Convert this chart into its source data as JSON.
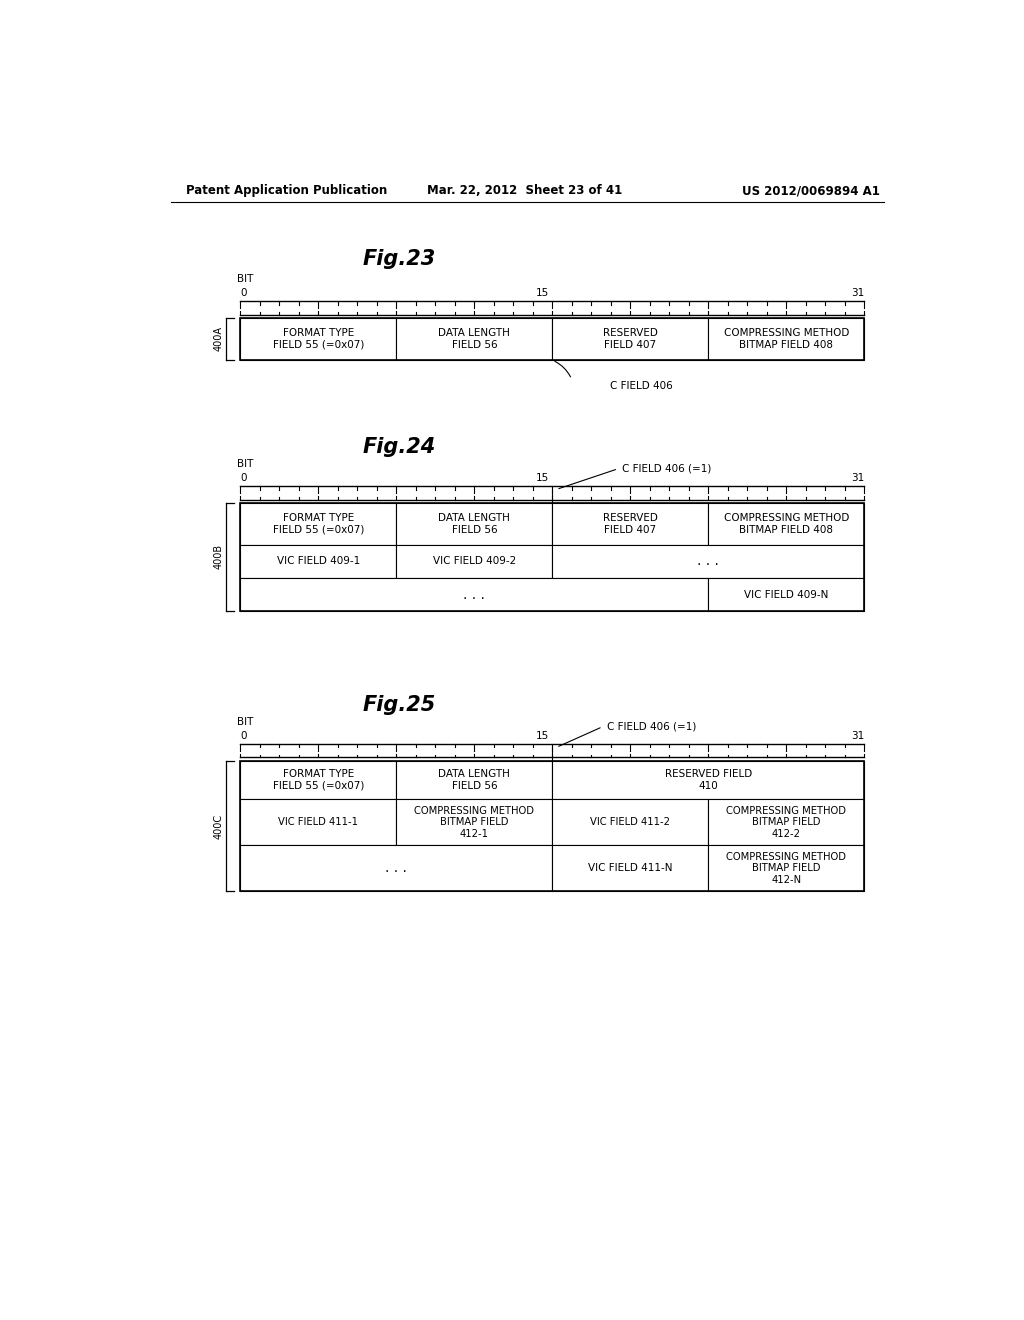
{
  "bg_color": "#ffffff",
  "text_color": "#000000",
  "header_text": {
    "left": "Patent Application Publication",
    "center": "Mar. 22, 2012  Sheet 23 of 41",
    "right": "US 2012/0069894 A1"
  },
  "fig23": {
    "title": "Fig.23",
    "bit_label": "BIT",
    "bit_0": "0",
    "bit_15": "15",
    "bit_31": "31",
    "label_400A": "400A",
    "row1": [
      "FORMAT TYPE\nFIELD 55 (=0x07)",
      "DATA LENGTH\nFIELD 56",
      "RESERVED\nFIELD 407",
      "COMPRESSING METHOD\nBITMAP FIELD 408"
    ],
    "annotation": "C FIELD 406"
  },
  "fig24": {
    "title": "Fig.24",
    "bit_label": "BIT",
    "bit_0": "0",
    "bit_15": "15",
    "bit_31": "31",
    "c_field_label": "C FIELD 406 (=1)",
    "label_400B": "400B",
    "row1": [
      "FORMAT TYPE\nFIELD 55 (=0x07)",
      "DATA LENGTH\nFIELD 56",
      "RESERVED\nFIELD 407",
      "COMPRESSING METHOD\nBITMAP FIELD 408"
    ],
    "row2_c0": "VIC FIELD 409-1",
    "row2_c1": "VIC FIELD 409-2",
    "row2_c23": ". . .",
    "row3_c012": ". . .",
    "row3_c3": "VIC FIELD 409-N"
  },
  "fig25": {
    "title": "Fig.25",
    "bit_label": "BIT",
    "bit_0": "0",
    "bit_15": "15",
    "bit_31": "31",
    "c_field_label": "C FIELD 406 (=1)",
    "label_400C": "400C",
    "row1_c0": "FORMAT TYPE\nFIELD 55 (=0x07)",
    "row1_c1": "DATA LENGTH\nFIELD 56",
    "row1_c23": "RESERVED FIELD\n410",
    "row2": [
      "VIC FIELD 411-1",
      "COMPRESSING METHOD\nBITMAP FIELD\n412-1",
      "VIC FIELD 411-2",
      "COMPRESSING METHOD\nBITMAP FIELD\n412-2"
    ],
    "row3_c01": ". . .",
    "row3_c2": "VIC FIELD 411-N",
    "row3_c3": "COMPRESSING METHOD\nBITMAP FIELD\n412-N"
  }
}
